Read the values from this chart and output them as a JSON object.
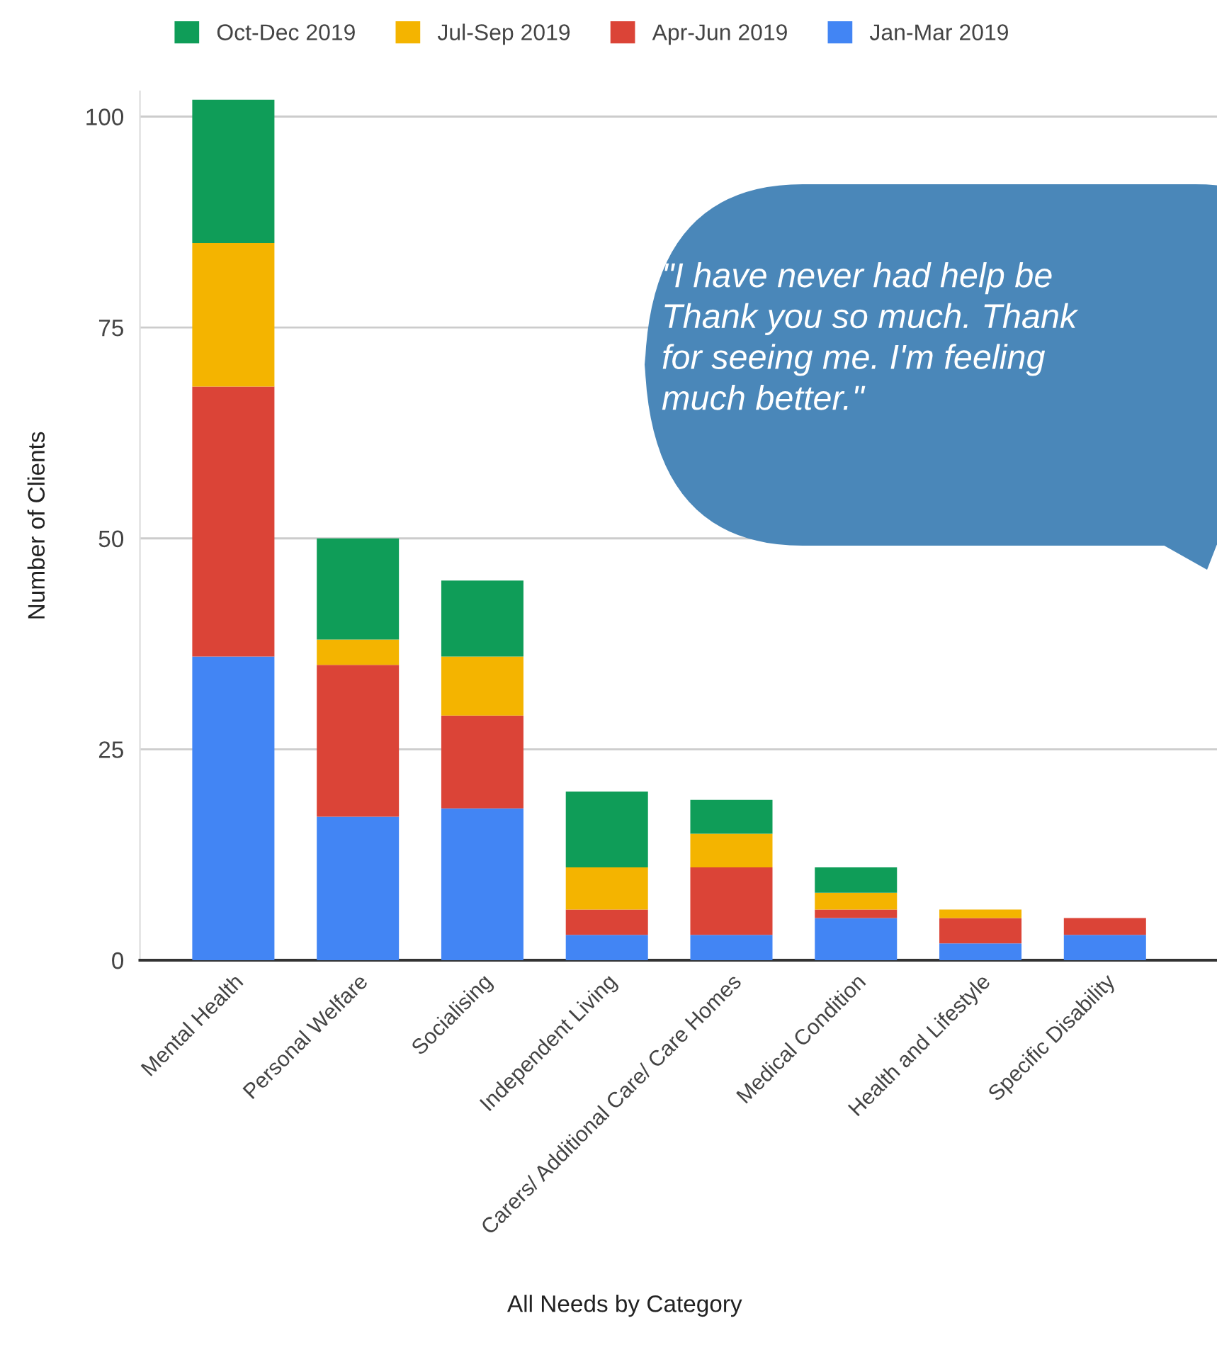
{
  "chart_data": {
    "type": "bar",
    "stacked": true,
    "xlabel": "All Needs by Category",
    "ylabel": "Number of Clients",
    "categories": [
      "Mental Health",
      "Personal Welfare",
      "Socialising",
      "Independent Living",
      "Carers/ Additional Care/ Care Homes",
      "Medical Condition",
      "Health and Lifestyle",
      "Specific Disability"
    ],
    "series": [
      {
        "name": "Jan-Mar 2019",
        "color": "#4285f4",
        "values": [
          36,
          17,
          18,
          3,
          3,
          5,
          2,
          3
        ]
      },
      {
        "name": "Apr-Jun 2019",
        "color": "#db4437",
        "values": [
          32,
          18,
          11,
          3,
          8,
          1,
          3,
          2
        ]
      },
      {
        "name": "Jul-Sep 2019",
        "color": "#f4b400",
        "values": [
          17,
          3,
          7,
          5,
          4,
          2,
          1,
          0
        ]
      },
      {
        "name": "Oct-Dec 2019",
        "color": "#0f9d58",
        "values": [
          17,
          12,
          9,
          9,
          4,
          3,
          0,
          0
        ]
      }
    ],
    "ylim": [
      0,
      103
    ],
    "yticks": [
      0,
      25,
      50,
      75,
      100
    ],
    "grid": "y",
    "legend": "top",
    "annotations": [
      "\"I have never had help be\nThank you so much. Thank\nfor seeing me. I'm feeling\nmuch better.\""
    ]
  }
}
